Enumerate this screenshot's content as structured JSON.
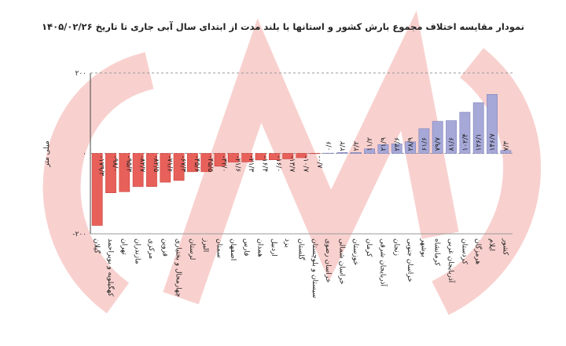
{
  "chart_data": {
    "type": "bar",
    "title": "نمودار مقایسه اختلاف مجموع بارش کشور و استانها با بلند مدت از ابتدای سال آبی جاری تا تاریخ ۱۴۰۵/۰۲/۲۶",
    "y_label": "میلی متر",
    "categories": [
      "گیلان",
      "کهگیلویه و بویراحمد",
      "تهران",
      "مازندران",
      "مرکزی",
      "قزوین",
      "چهارمحال و بختیاری",
      "لرستان",
      "البرز",
      "سمنان",
      "اصفهان",
      "فارس",
      "همدان",
      "اردبیل",
      "یزد",
      "گلستان",
      "سیستان و بلوچستان",
      "خراسان رضوی",
      "خراسان شمالی",
      "خوزستان",
      "کرمان",
      "آذربایجان شرقی",
      "زنجان",
      "خراسان جنوبی",
      "بوشهر",
      "کرمانشاه",
      "آذربایجان غربی",
      "کردستان",
      "هرمزگان",
      "ایلام",
      "کشور"
    ],
    "values": [
      -179.3,
      -98.0,
      -95.3,
      -82.7,
      -82.5,
      -71.6,
      -67.3,
      -45.6,
      -45.5,
      -32.0,
      -21.6,
      -21.3,
      -16.4,
      -16.0,
      -13.7,
      -10.7,
      -0.7,
      0.6,
      2.2,
      2.2,
      11.2,
      21.9,
      23.6,
      28.9,
      61.6,
      79.7,
      81.6,
      102.4,
      126.1,
      146.7,
      7.3
    ],
    "value_labels": [
      "-۱۷۹/۳",
      "-۹۸/۰",
      "-۹۵/۳",
      "-۸۲/۷",
      "-۸۲/۵",
      "-۷۱/۶",
      "-۶۷/۳",
      "-۴۵/۶",
      "-۴۵/۵",
      "-۳۲/۰",
      "-۲۱/۶",
      "-۲۱/۳",
      "-۱۶/۴",
      "-۱۶/۰",
      "-۱۳/۷",
      "-۱۰/۷",
      "-۰/۷",
      "۰/۶",
      "۲/۲",
      "۲/۲",
      "۱۱/۲",
      "۲۱/۹",
      "۲۳/۶",
      "۲۸/۹",
      "۶۱/۶",
      "۷۹/۷",
      "۸۱/۶",
      "۱۰۲/۴",
      "۱۲۶/۱",
      "۱۴۶/۷",
      "۷/۳"
    ],
    "negative_color": "#e8605a",
    "positive_color": "#a6a8d8",
    "ylim": [
      -200,
      200
    ],
    "yticks": [
      {
        "value": -200,
        "label": "-۲۰۰"
      },
      {
        "value": 0,
        "label": "۰"
      },
      {
        "value": 200,
        "label": "۲۰۰"
      }
    ]
  }
}
